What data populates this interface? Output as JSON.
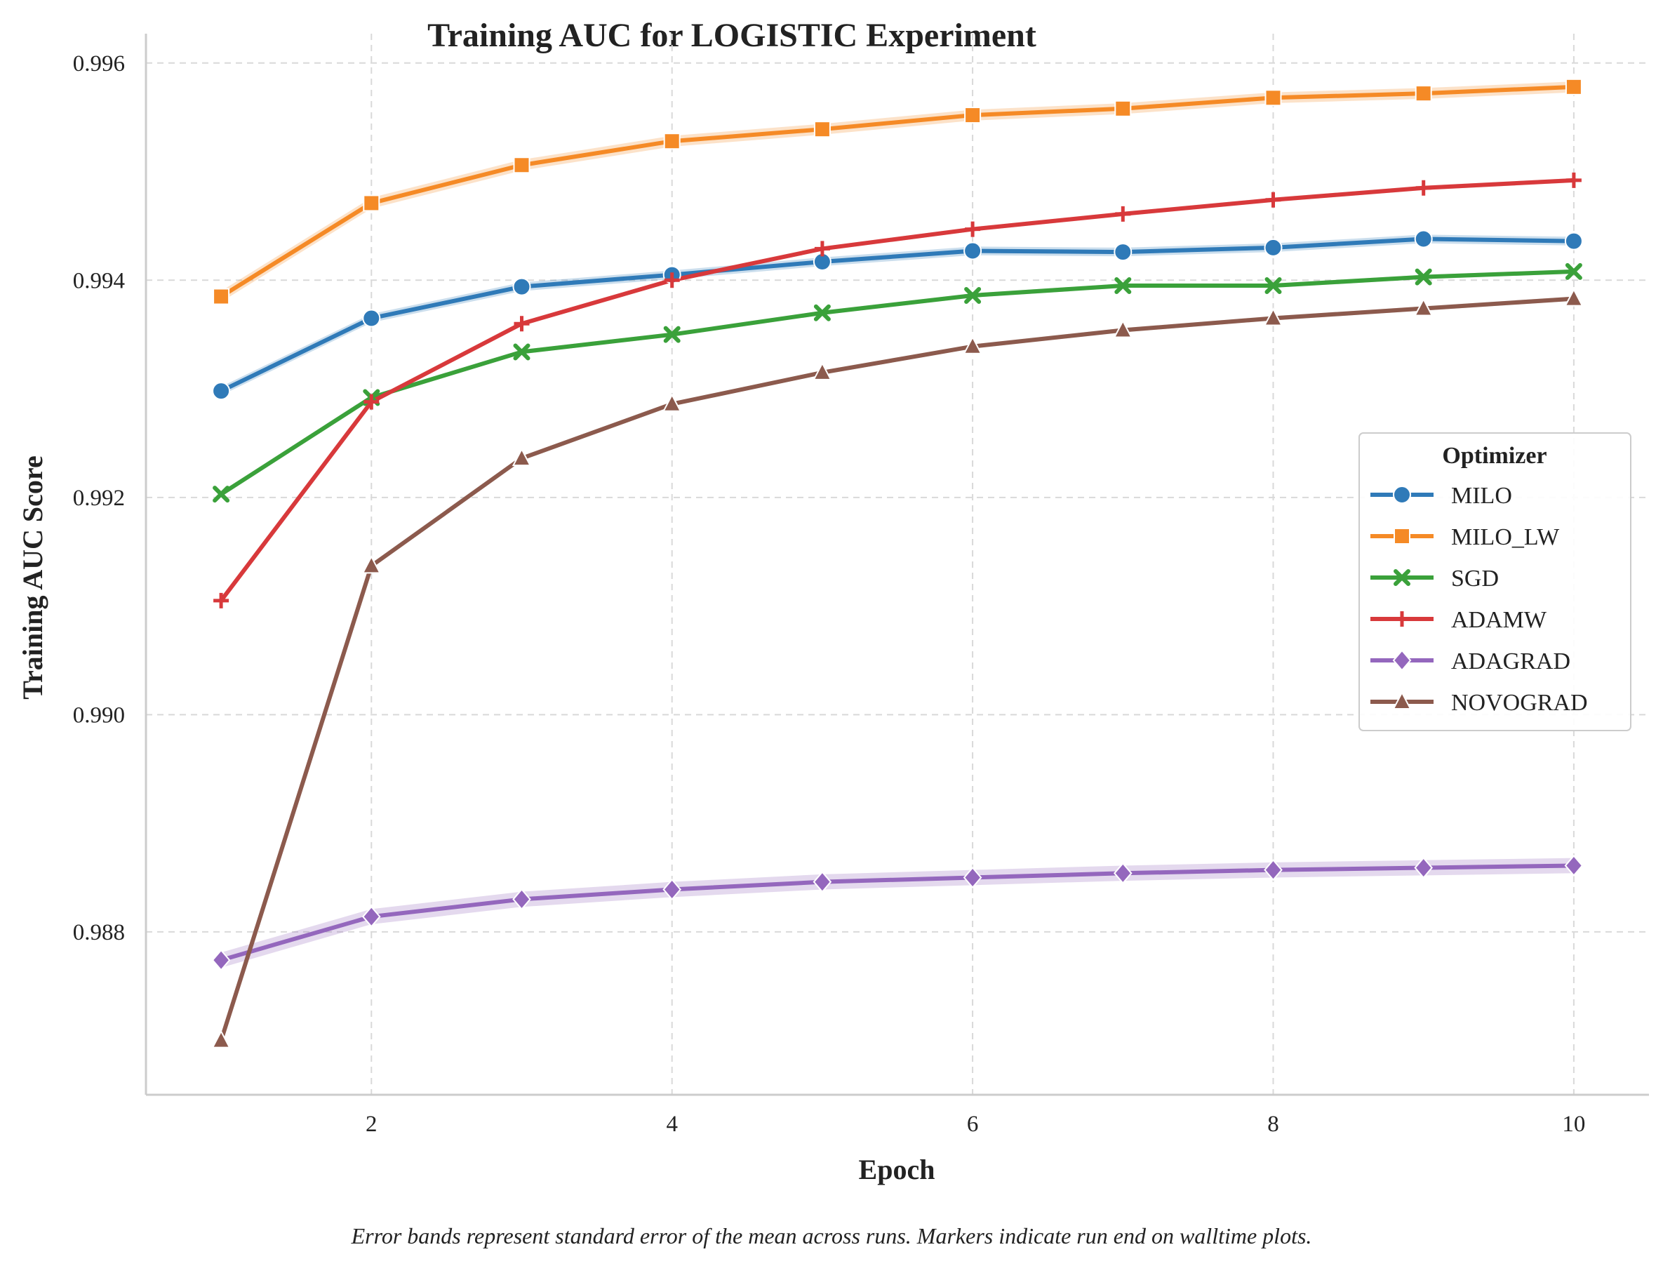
{
  "chart_data": {
    "type": "line",
    "title": "Training AUC for LOGISTIC Experiment",
    "xlabel": "Epoch",
    "ylabel": "Training AUC Score",
    "x": [
      1,
      2,
      3,
      4,
      5,
      6,
      7,
      8,
      9,
      10
    ],
    "xlim": [
      0.5,
      10.5
    ],
    "ylim": [
      0.9865,
      0.99627
    ],
    "xticks": [
      2,
      4,
      6,
      8,
      10
    ],
    "xtick_labels": [
      "2",
      "4",
      "6",
      "8",
      "10"
    ],
    "yticks": [
      0.988,
      0.99,
      0.992,
      0.994,
      0.996
    ],
    "ytick_labels": [
      "0.988",
      "0.990",
      "0.992",
      "0.994",
      "0.996"
    ],
    "grid": true,
    "legend": {
      "title": "Optimizer",
      "position": "center-right"
    },
    "caption": "Error bands represent standard error of the mean across runs. Markers indicate run end on walltime plots.",
    "series": [
      {
        "name": "MILO",
        "color": "#2f7ab8",
        "marker": "circle",
        "band": 4e-05,
        "values": [
          0.99298,
          0.99365,
          0.99394,
          0.99405,
          0.99417,
          0.99427,
          0.99426,
          0.9943,
          0.99438,
          0.99436
        ]
      },
      {
        "name": "MILO_LW",
        "color": "#f58a26",
        "marker": "square",
        "band": 5e-05,
        "values": [
          0.99385,
          0.99471,
          0.99506,
          0.99528,
          0.99539,
          0.99552,
          0.99558,
          0.99568,
          0.99572,
          0.99578
        ]
      },
      {
        "name": "SGD",
        "color": "#3aa13a",
        "marker": "x",
        "band": 2e-05,
        "values": [
          0.99203,
          0.99292,
          0.99334,
          0.9935,
          0.9937,
          0.99386,
          0.99395,
          0.99395,
          0.99403,
          0.99408
        ]
      },
      {
        "name": "ADAMW",
        "color": "#d8393b",
        "marker": "plus",
        "band": 2e-05,
        "values": [
          0.99105,
          0.99288,
          0.9936,
          0.994,
          0.99429,
          0.99447,
          0.99461,
          0.99474,
          0.99485,
          0.99492
        ]
      },
      {
        "name": "ADAGRAD",
        "color": "#9467bd",
        "marker": "diamond",
        "band": 7e-05,
        "values": [
          0.98774,
          0.98814,
          0.9883,
          0.98839,
          0.98846,
          0.9885,
          0.98854,
          0.98857,
          0.98859,
          0.98861
        ]
      },
      {
        "name": "NOVOGRAD",
        "color": "#8c5a4d",
        "marker": "triangle",
        "band": 2e-05,
        "values": [
          0.987,
          0.99137,
          0.99236,
          0.99286,
          0.99315,
          0.99339,
          0.99354,
          0.99365,
          0.99374,
          0.99383
        ]
      }
    ]
  }
}
